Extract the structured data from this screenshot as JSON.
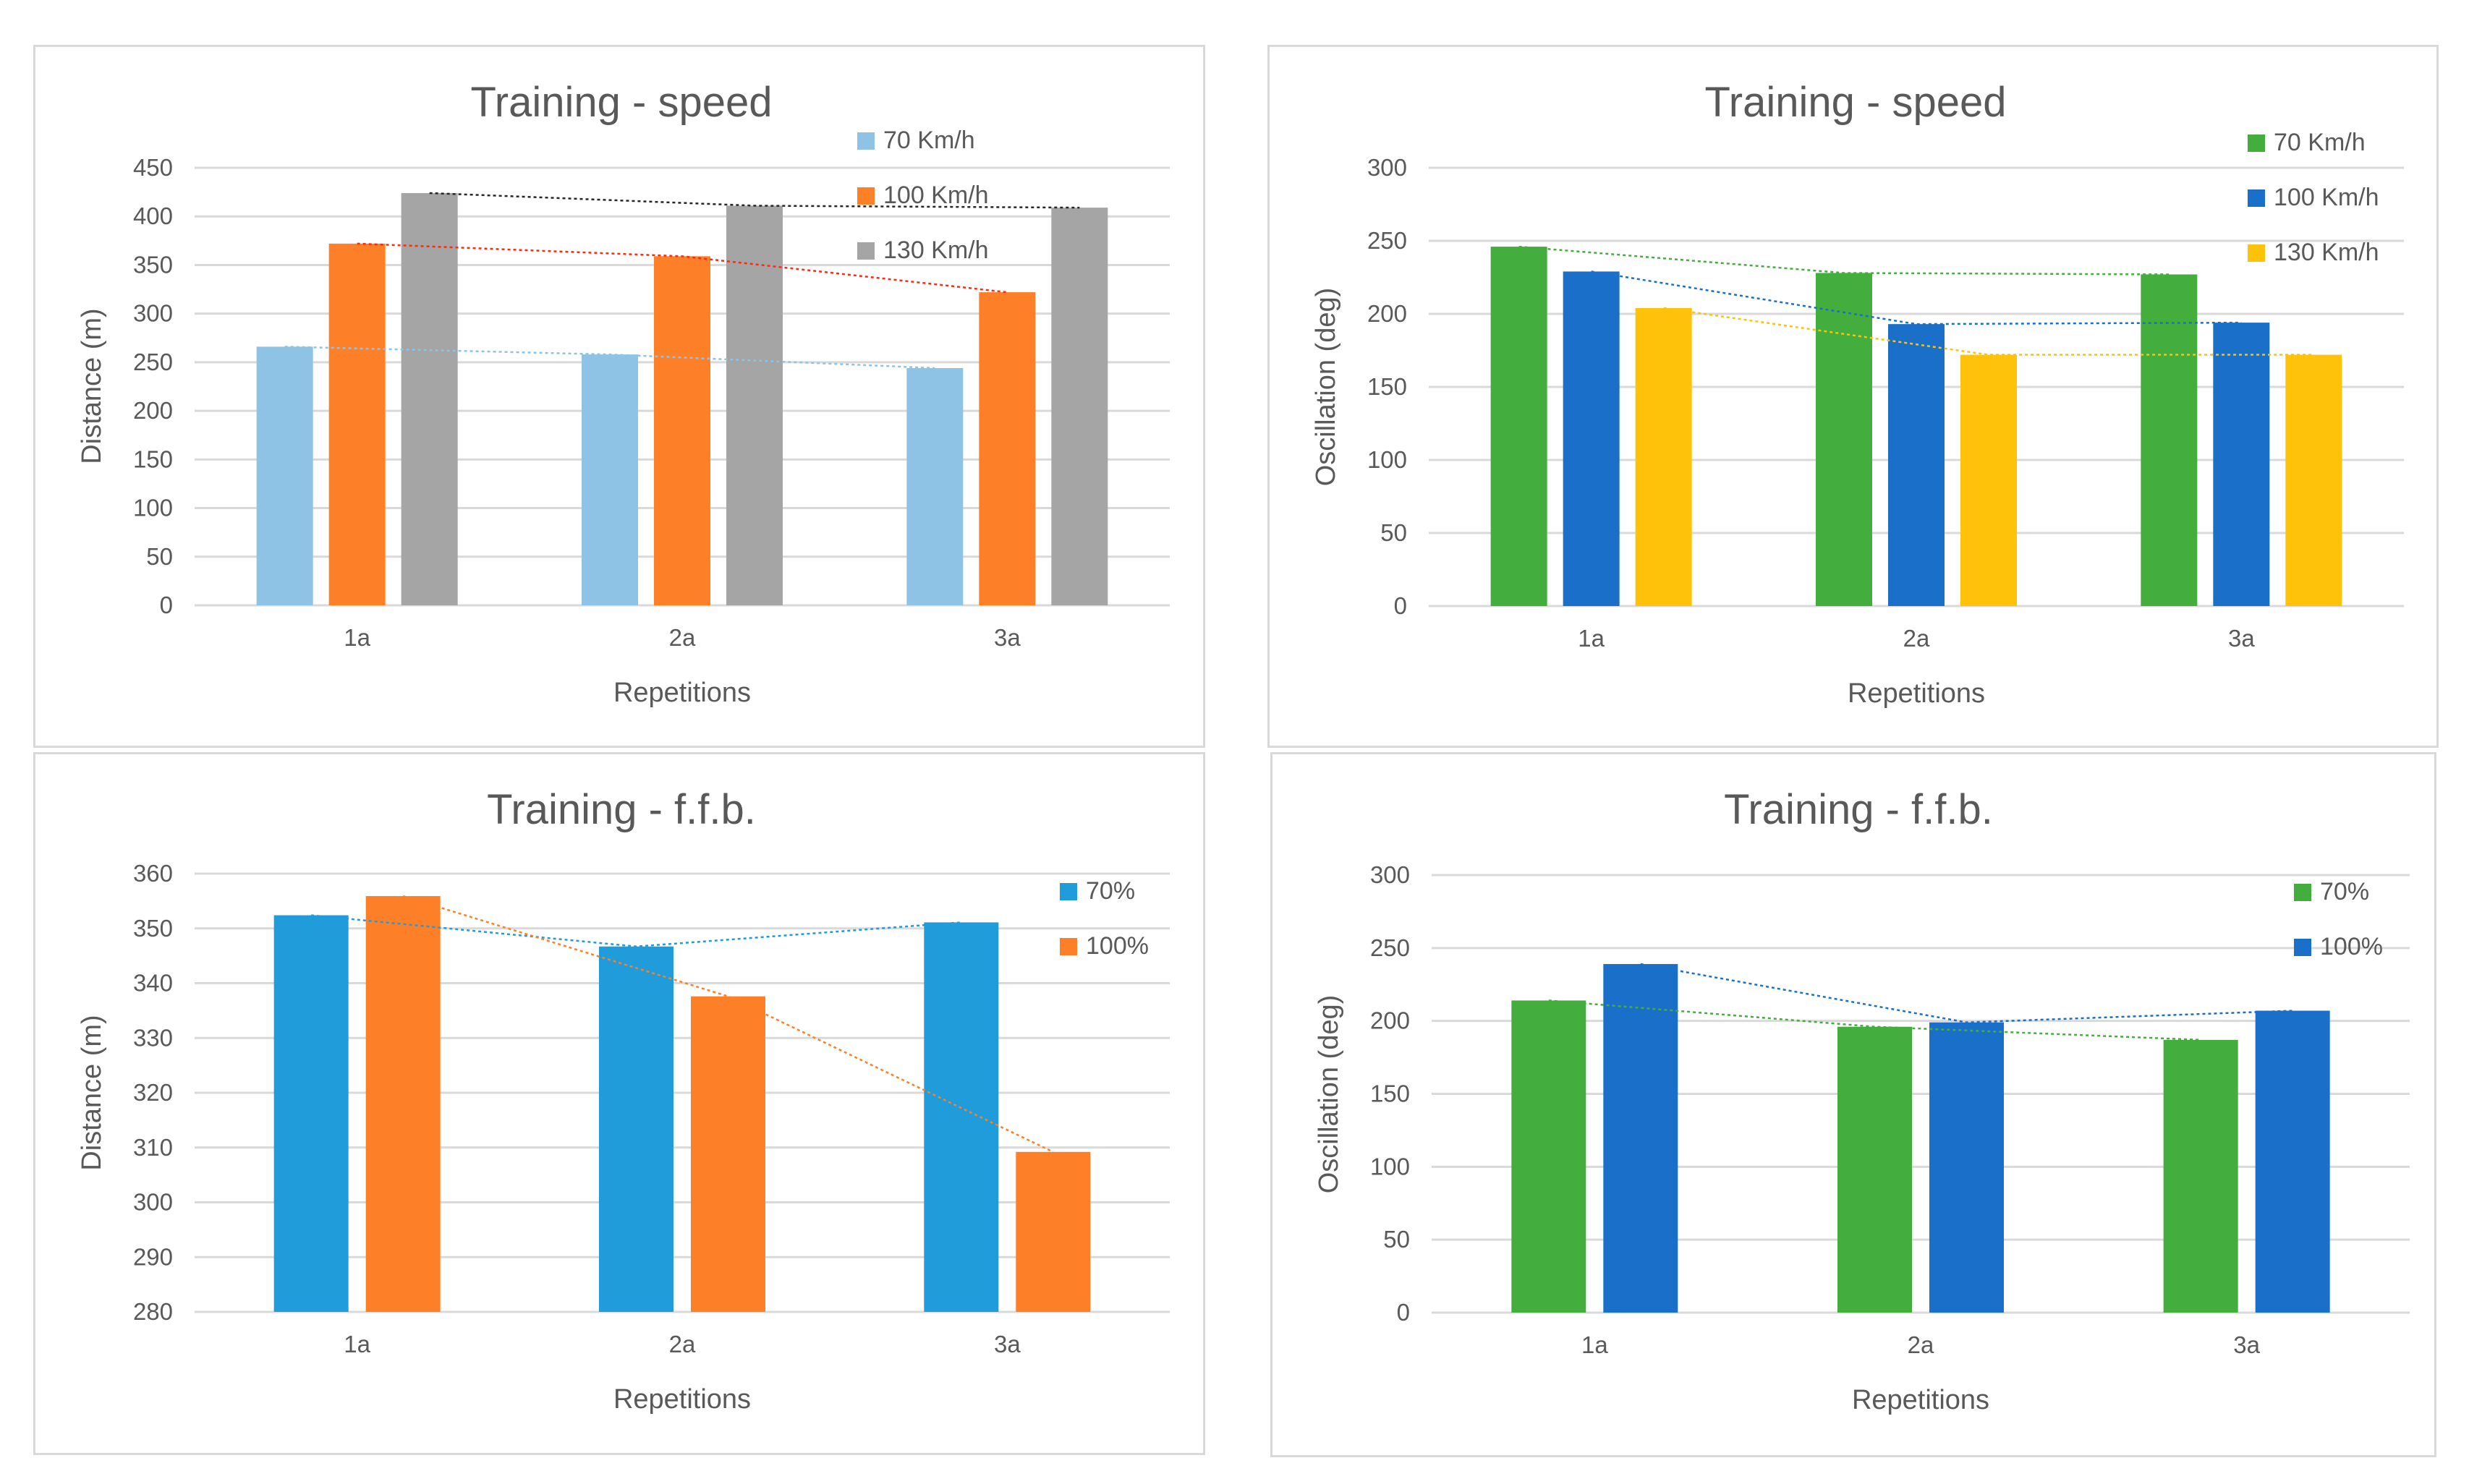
{
  "colors": {
    "light_blue": "#8fc3e6",
    "orange": "#fd7f27",
    "gray": "#a5a5a5",
    "green": "#43ae3d",
    "blue": "#1a70c8",
    "gold": "#fec20a",
    "sky": "#1f9cd9",
    "grid": "#d9d9d9",
    "trend_black": "#262626",
    "trend_red": "#ff2a12"
  },
  "chart_data": [
    {
      "type": "bar",
      "title": "Training - speed",
      "xlabel": "Repetitions",
      "ylabel": "Distance (m)",
      "ylim": [
        0,
        450
      ],
      "yticks": [
        0,
        50,
        100,
        150,
        200,
        250,
        300,
        350,
        400,
        450
      ],
      "grid": true,
      "legend_position": "top-right",
      "categories": [
        "1a",
        "2a",
        "3a"
      ],
      "series": [
        {
          "name": "70 Km/h",
          "values": [
            266,
            258,
            244
          ],
          "color": "light_blue",
          "trend_color": "light_blue"
        },
        {
          "name": "100 Km/h",
          "values": [
            372,
            359,
            322
          ],
          "color": "orange",
          "trend_color": "trend_red"
        },
        {
          "name": "130 Km/h",
          "values": [
            424,
            411,
            409
          ],
          "color": "gray",
          "trend_color": "trend_black"
        }
      ]
    },
    {
      "type": "bar",
      "title": "Training - speed",
      "xlabel": "Repetitions",
      "ylabel": "Oscillation (deg)",
      "ylim": [
        0,
        300
      ],
      "yticks": [
        0,
        50,
        100,
        150,
        200,
        250,
        300
      ],
      "grid": true,
      "legend_position": "top-right",
      "categories": [
        "1a",
        "2a",
        "3a"
      ],
      "series": [
        {
          "name": "70 Km/h",
          "values": [
            246,
            228,
            227
          ],
          "color": "green",
          "trend_color": "green"
        },
        {
          "name": "100 Km/h",
          "values": [
            229,
            193,
            194
          ],
          "color": "blue",
          "trend_color": "blue"
        },
        {
          "name": "130 Km/h",
          "values": [
            204,
            172,
            172
          ],
          "color": "gold",
          "trend_color": "gold"
        }
      ]
    },
    {
      "type": "bar",
      "title": "Training - f.f.b.",
      "xlabel": "Repetitions",
      "ylabel": "Distance (m)",
      "ylim": [
        280,
        360
      ],
      "yticks": [
        280,
        290,
        300,
        310,
        320,
        330,
        340,
        350,
        360
      ],
      "grid": true,
      "legend_position": "top-right",
      "categories": [
        "1a",
        "2a",
        "3a"
      ],
      "series": [
        {
          "name": "70%",
          "values": [
            352.4,
            346.7,
            351.1
          ],
          "color": "sky",
          "trend_color": "sky"
        },
        {
          "name": "100%",
          "values": [
            355.9,
            337.6,
            309.2
          ],
          "color": "orange",
          "trend_color": "orange"
        }
      ]
    },
    {
      "type": "bar",
      "title": "Training - f.f.b.",
      "xlabel": "Repetitions",
      "ylabel": "Oscillation (deg)",
      "ylim": [
        0,
        300
      ],
      "yticks": [
        0,
        50,
        100,
        150,
        200,
        250,
        300
      ],
      "grid": true,
      "legend_position": "top-right",
      "categories": [
        "1a",
        "2a",
        "3a"
      ],
      "series": [
        {
          "name": "70%",
          "values": [
            214,
            196,
            187
          ],
          "color": "green",
          "trend_color": "green"
        },
        {
          "name": "100%",
          "values": [
            239,
            199,
            207
          ],
          "color": "blue",
          "trend_color": "blue"
        }
      ]
    }
  ]
}
